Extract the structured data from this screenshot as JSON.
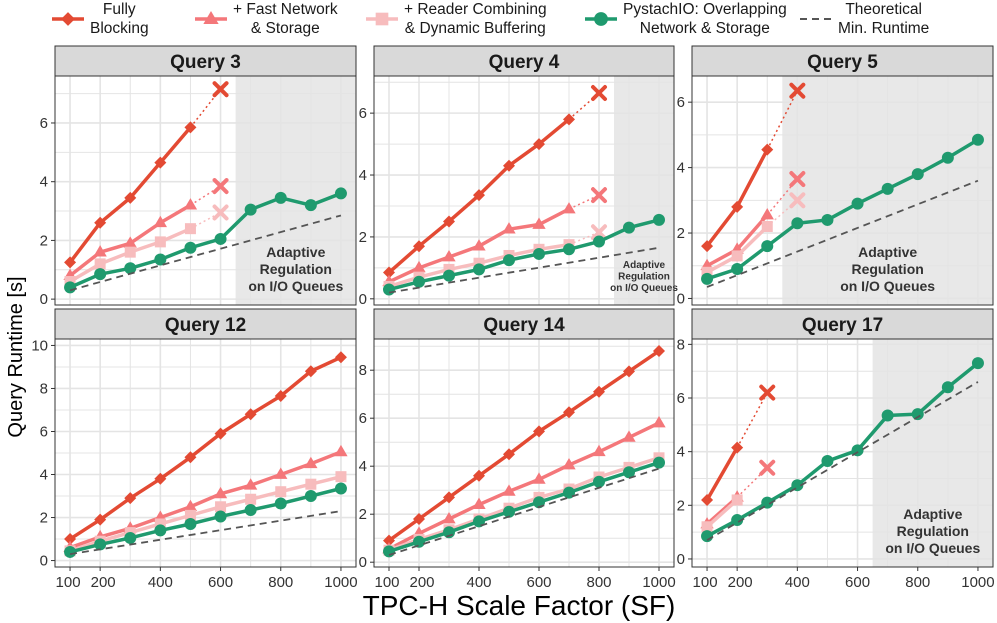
{
  "colors": {
    "fully_blocking": "#e34a33",
    "fast_network": "#f4777a",
    "reader_combining": "#f7bcbd",
    "pystachio": "#1f9a6e",
    "theoretical": "#555555",
    "panel_bg": "#ffffff",
    "grid": "#e4e4e4",
    "strip_bg": "#d9d9d9",
    "shaded_region": "#e8e8e8"
  },
  "chart_data": {
    "type": "line",
    "xlabel": "TPC-H Scale Factor (SF)",
    "ylabel": "Query Runtime [s]",
    "x_ticks": [
      100,
      200,
      400,
      600,
      800,
      1000
    ],
    "x_tick_labels": [
      "100",
      "200",
      "400",
      "600",
      "800",
      "1000"
    ],
    "xlim": [
      50,
      1050
    ],
    "legend": [
      {
        "key": "fully_blocking",
        "line1": "Fully",
        "line2": "Blocking",
        "marker": "diamond"
      },
      {
        "key": "fast_network",
        "line1": "+ Fast Network",
        "line2": "& Storage",
        "marker": "triangle"
      },
      {
        "key": "reader_combining",
        "line1": "+ Reader Combining",
        "line2": "& Dynamic Buffering",
        "marker": "square"
      },
      {
        "key": "pystachio",
        "line1": "PystachIO: Overlapping",
        "line2": "Network & Storage",
        "marker": "circle"
      },
      {
        "key": "theoretical",
        "line1": "Theoretical",
        "line2": "Min. Runtime",
        "marker": "dash"
      }
    ],
    "panels": [
      {
        "title": "Query 3",
        "ylim": [
          -0.2,
          7.6
        ],
        "y_ticks": [
          0,
          2,
          4,
          6
        ],
        "region": {
          "x_start": 650,
          "line1": "Adaptive",
          "line2": "Regulation",
          "line3": "on I/O Queues",
          "size": "large"
        },
        "series": [
          {
            "key": "fully_blocking",
            "x": [
              100,
              200,
              300,
              400,
              500
            ],
            "y": [
              1.25,
              2.6,
              3.45,
              4.65,
              5.85
            ],
            "fail": {
              "x": 600,
              "y": 7.15
            }
          },
          {
            "key": "fast_network",
            "x": [
              100,
              200,
              300,
              400,
              500
            ],
            "y": [
              0.8,
              1.6,
              1.9,
              2.6,
              3.2
            ],
            "fail": {
              "x": 600,
              "y": 3.85
            }
          },
          {
            "key": "reader_combining",
            "x": [
              100,
              200,
              300,
              400,
              500
            ],
            "y": [
              0.6,
              1.2,
              1.6,
              1.95,
              2.4
            ],
            "fail": {
              "x": 600,
              "y": 2.95
            }
          },
          {
            "key": "pystachio",
            "x": [
              100,
              200,
              300,
              400,
              500,
              600,
              700,
              800,
              900,
              1000
            ],
            "y": [
              0.4,
              0.85,
              1.05,
              1.35,
              1.75,
              2.05,
              3.05,
              3.45,
              3.2,
              3.6
            ]
          },
          {
            "key": "theoretical",
            "x": [
              100,
              1000
            ],
            "y": [
              0.3,
              2.85
            ]
          }
        ]
      },
      {
        "title": "Query 4",
        "ylim": [
          -0.2,
          7.2
        ],
        "y_ticks": [
          0,
          2,
          4,
          6
        ],
        "region": {
          "x_start": 850,
          "line1": "Adaptive",
          "line2": "Regulation",
          "line3": "on I/O Queues",
          "size": "small"
        },
        "series": [
          {
            "key": "fully_blocking",
            "x": [
              100,
              200,
              300,
              400,
              500,
              600,
              700
            ],
            "y": [
              0.85,
              1.7,
              2.5,
              3.35,
              4.3,
              5.0,
              5.8
            ],
            "fail": {
              "x": 800,
              "y": 6.65
            }
          },
          {
            "key": "fast_network",
            "x": [
              100,
              200,
              300,
              400,
              500,
              600,
              700
            ],
            "y": [
              0.55,
              1.0,
              1.35,
              1.7,
              2.25,
              2.4,
              2.9
            ],
            "fail": {
              "x": 800,
              "y": 3.35
            }
          },
          {
            "key": "reader_combining",
            "x": [
              100,
              200,
              300,
              400,
              500,
              600,
              700
            ],
            "y": [
              0.4,
              0.7,
              0.95,
              1.15,
              1.4,
              1.6,
              1.75
            ],
            "fail": {
              "x": 800,
              "y": 2.15
            }
          },
          {
            "key": "pystachio",
            "x": [
              100,
              200,
              300,
              400,
              500,
              600,
              700,
              800,
              900,
              1000
            ],
            "y": [
              0.3,
              0.55,
              0.75,
              0.95,
              1.25,
              1.45,
              1.6,
              1.85,
              2.3,
              2.55
            ]
          },
          {
            "key": "theoretical",
            "x": [
              100,
              1000
            ],
            "y": [
              0.2,
              1.65
            ]
          }
        ]
      },
      {
        "title": "Query 5",
        "ylim": [
          -0.2,
          6.8
        ],
        "y_ticks": [
          0,
          2,
          4,
          6
        ],
        "region": {
          "x_start": 350,
          "line1": "Adaptive",
          "line2": "Regulation",
          "line3": "on I/O Queues",
          "size": "large"
        },
        "series": [
          {
            "key": "fully_blocking",
            "x": [
              100,
              200,
              300
            ],
            "y": [
              1.6,
              2.8,
              4.55
            ],
            "fail": {
              "x": 400,
              "y": 6.35
            }
          },
          {
            "key": "fast_network",
            "x": [
              100,
              200,
              300
            ],
            "y": [
              1.0,
              1.5,
              2.55
            ],
            "fail": {
              "x": 400,
              "y": 3.65
            }
          },
          {
            "key": "reader_combining",
            "x": [
              100,
              200,
              300
            ],
            "y": [
              0.8,
              1.3,
              2.2
            ],
            "fail": {
              "x": 400,
              "y": 3.0
            }
          },
          {
            "key": "pystachio",
            "x": [
              100,
              200,
              300,
              400,
              500,
              600,
              700,
              800,
              900,
              1000
            ],
            "y": [
              0.6,
              0.9,
              1.6,
              2.3,
              2.4,
              2.9,
              3.35,
              3.8,
              4.3,
              4.85
            ]
          },
          {
            "key": "theoretical",
            "x": [
              100,
              1000
            ],
            "y": [
              0.35,
              3.6
            ]
          }
        ]
      },
      {
        "title": "Query 12",
        "ylim": [
          -0.3,
          10.3
        ],
        "y_ticks": [
          0,
          2,
          4,
          6,
          8,
          10
        ],
        "region": null,
        "series": [
          {
            "key": "fully_blocking",
            "x": [
              100,
              200,
              300,
              400,
              500,
              600,
              700,
              800,
              900,
              1000
            ],
            "y": [
              1.0,
              1.9,
              2.9,
              3.8,
              4.8,
              5.9,
              6.8,
              7.65,
              8.8,
              9.45
            ]
          },
          {
            "key": "fast_network",
            "x": [
              100,
              200,
              300,
              400,
              500,
              600,
              700,
              800,
              900,
              1000
            ],
            "y": [
              0.6,
              1.1,
              1.5,
              2.0,
              2.5,
              3.1,
              3.5,
              4.0,
              4.5,
              5.05
            ]
          },
          {
            "key": "reader_combining",
            "x": [
              100,
              200,
              300,
              400,
              500,
              600,
              700,
              800,
              900,
              1000
            ],
            "y": [
              0.45,
              0.9,
              1.3,
              1.7,
              2.1,
              2.5,
              2.85,
              3.2,
              3.55,
              3.9
            ]
          },
          {
            "key": "pystachio",
            "x": [
              100,
              200,
              300,
              400,
              500,
              600,
              700,
              800,
              900,
              1000
            ],
            "y": [
              0.4,
              0.75,
              1.05,
              1.4,
              1.7,
              2.05,
              2.35,
              2.65,
              3.0,
              3.35
            ]
          },
          {
            "key": "theoretical",
            "x": [
              100,
              1000
            ],
            "y": [
              0.3,
              2.3
            ]
          }
        ]
      },
      {
        "title": "Query 14",
        "ylim": [
          -0.2,
          9.3
        ],
        "y_ticks": [
          0,
          2,
          4,
          6,
          8
        ],
        "region": null,
        "series": [
          {
            "key": "fully_blocking",
            "x": [
              100,
              200,
              300,
              400,
              500,
              600,
              700,
              800,
              900,
              1000
            ],
            "y": [
              0.9,
              1.8,
              2.7,
              3.6,
              4.5,
              5.45,
              6.25,
              7.1,
              7.95,
              8.8
            ]
          },
          {
            "key": "fast_network",
            "x": [
              100,
              200,
              300,
              400,
              500,
              600,
              700,
              800,
              900,
              1000
            ],
            "y": [
              0.55,
              1.2,
              1.8,
              2.4,
              2.95,
              3.45,
              4.05,
              4.6,
              5.2,
              5.8
            ]
          },
          {
            "key": "reader_combining",
            "x": [
              100,
              200,
              300,
              400,
              500,
              600,
              700,
              800,
              900,
              1000
            ],
            "y": [
              0.5,
              0.95,
              1.35,
              1.8,
              2.25,
              2.7,
              3.05,
              3.55,
              3.95,
              4.35
            ]
          },
          {
            "key": "pystachio",
            "x": [
              100,
              200,
              300,
              400,
              500,
              600,
              700,
              800,
              900,
              1000
            ],
            "y": [
              0.45,
              0.85,
              1.25,
              1.7,
              2.1,
              2.5,
              2.9,
              3.35,
              3.75,
              4.15
            ]
          },
          {
            "key": "theoretical",
            "x": [
              100,
              1000
            ],
            "y": [
              0.3,
              3.9
            ]
          }
        ]
      },
      {
        "title": "Query 17",
        "ylim": [
          -0.3,
          8.2
        ],
        "y_ticks": [
          0,
          2,
          4,
          6,
          8
        ],
        "region": {
          "x_start": 650,
          "line1": "Adaptive",
          "line2": "Regulation",
          "line3": "on I/O Queues",
          "size": "large"
        },
        "series": [
          {
            "key": "fully_blocking",
            "x": [
              100,
              200
            ],
            "y": [
              2.2,
              4.15
            ],
            "fail": {
              "x": 300,
              "y": 6.2
            }
          },
          {
            "key": "fast_network",
            "x": [
              100,
              200
            ],
            "y": [
              1.3,
              2.3
            ],
            "fail": {
              "x": 300,
              "y": 3.4
            }
          },
          {
            "key": "reader_combining",
            "x": [
              100,
              200
            ],
            "y": [
              1.2,
              2.2
            ],
            "fail": null
          },
          {
            "key": "pystachio",
            "x": [
              100,
              200,
              300,
              400,
              500,
              600,
              700,
              800,
              900,
              1000
            ],
            "y": [
              0.85,
              1.45,
              2.1,
              2.75,
              3.65,
              4.05,
              5.35,
              5.4,
              6.4,
              7.3
            ]
          },
          {
            "key": "theoretical",
            "x": [
              100,
              1000
            ],
            "y": [
              0.7,
              6.6
            ]
          }
        ]
      }
    ]
  }
}
